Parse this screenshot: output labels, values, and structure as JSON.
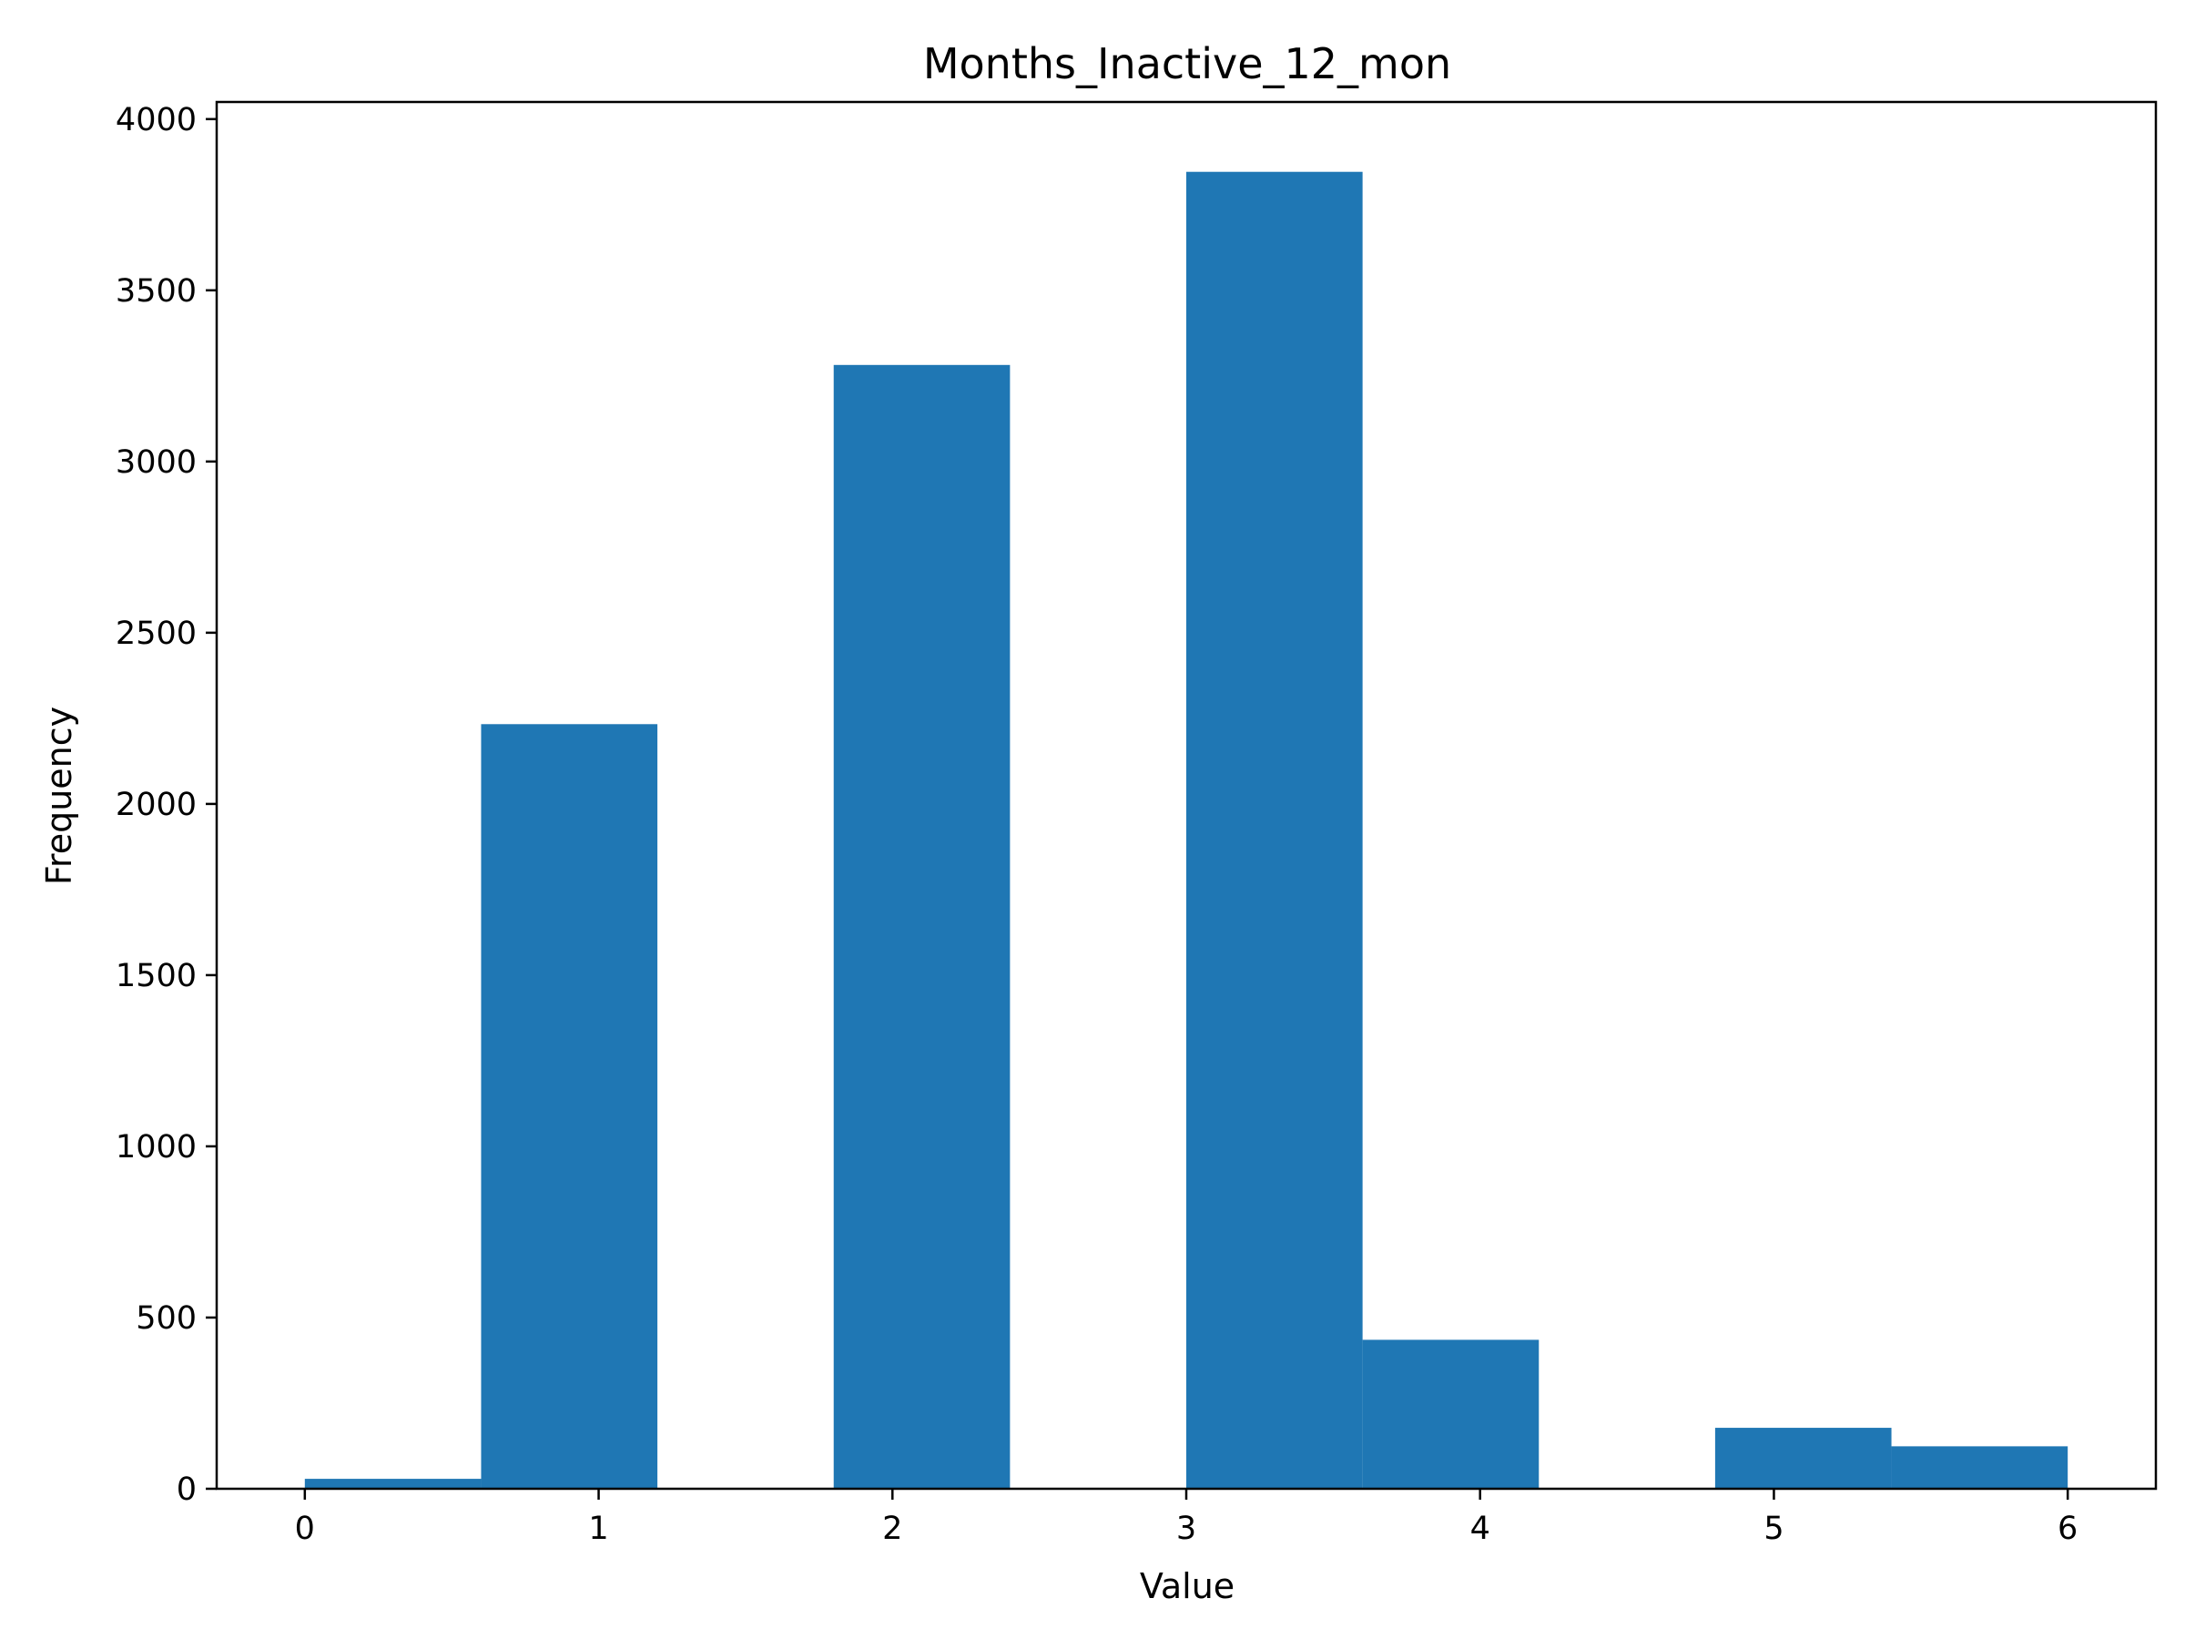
{
  "chart_data": {
    "type": "bar",
    "title": "Months_Inactive_12_mon",
    "xlabel": "Value",
    "ylabel": "Frequency",
    "xlim": [
      -0.3,
      6.3
    ],
    "ylim": [
      0,
      4050
    ],
    "grid": false,
    "color": "#1f77b4",
    "x_ticks": [
      0,
      1,
      2,
      3,
      4,
      5,
      6
    ],
    "y_ticks": [
      0,
      500,
      1000,
      1500,
      2000,
      2500,
      3000,
      3500,
      4000
    ],
    "bins": [
      {
        "x0": 0.0,
        "x1": 0.6,
        "value": 29
      },
      {
        "x0": 0.6,
        "x1": 1.2,
        "value": 2233
      },
      {
        "x0": 1.2,
        "x1": 1.8,
        "value": 0
      },
      {
        "x0": 1.8,
        "x1": 2.4,
        "value": 3282
      },
      {
        "x0": 2.4,
        "x1": 3.0,
        "value": 0
      },
      {
        "x0": 3.0,
        "x1": 3.6,
        "value": 3846
      },
      {
        "x0": 3.6,
        "x1": 4.2,
        "value": 435
      },
      {
        "x0": 4.2,
        "x1": 4.8,
        "value": 0
      },
      {
        "x0": 4.8,
        "x1": 5.4,
        "value": 178
      },
      {
        "x0": 5.4,
        "x1": 6.0,
        "value": 124
      }
    ]
  }
}
